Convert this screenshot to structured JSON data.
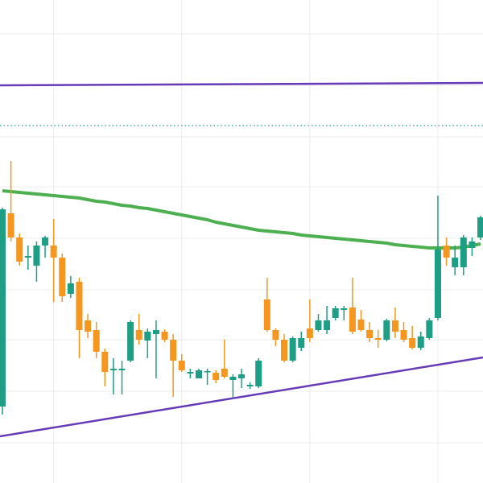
{
  "chart_data": {
    "type": "candlestick",
    "categories": [
      null,
      null,
      null,
      null,
      null,
      null,
      null,
      null,
      null,
      null,
      null,
      null,
      null,
      null,
      null,
      null,
      null,
      null,
      null,
      null,
      null,
      null,
      null,
      null,
      null,
      null,
      null,
      null,
      null,
      null,
      null,
      null,
      null,
      null,
      null,
      null,
      null,
      null,
      null,
      null,
      null,
      null,
      null,
      null,
      null,
      null,
      null,
      null,
      null,
      null,
      null,
      null,
      null,
      null,
      null,
      null,
      null
    ],
    "open": [
      95,
      335,
      305,
      280,
      270,
      295,
      295,
      280,
      235,
      250,
      202,
      190,
      163,
      140,
      140,
      152,
      190,
      177,
      185,
      188,
      178,
      152,
      136,
      130,
      138,
      137,
      142,
      128,
      130,
      120,
      120,
      228,
      190,
      178,
      152,
      168,
      192,
      190,
      190,
      205,
      215,
      218,
      203,
      190,
      180,
      178,
      202,
      190,
      180,
      168,
      180,
      205,
      295,
      268,
      268,
      292,
      305
    ],
    "high": [
      342,
      400,
      310,
      295,
      300,
      307,
      328,
      285,
      257,
      255,
      210,
      200,
      167,
      155,
      152,
      202,
      210,
      192,
      202,
      191,
      185,
      160,
      142,
      142,
      142,
      140,
      178,
      135,
      142,
      125,
      155,
      255,
      192,
      185,
      182,
      188,
      228,
      210,
      220,
      220,
      220,
      255,
      215,
      200,
      190,
      204,
      218,
      200,
      195,
      188,
      205,
      357,
      305,
      295,
      308,
      305,
      332
    ],
    "low": [
      85,
      300,
      270,
      265,
      250,
      280,
      225,
      225,
      230,
      155,
      180,
      155,
      120,
      110,
      110,
      150,
      172,
      155,
      130,
      175,
      107,
      138,
      130,
      130,
      122,
      124,
      130,
      105,
      118,
      117,
      118,
      188,
      170,
      150,
      150,
      164,
      175,
      188,
      185,
      202,
      202,
      185,
      188,
      175,
      168,
      176,
      180,
      175,
      166,
      165,
      178,
      202,
      270,
      258,
      258,
      282,
      302
    ],
    "close": [
      340,
      305,
      275,
      282,
      295,
      305,
      280,
      232,
      248,
      190,
      188,
      163,
      138,
      142,
      142,
      200,
      178,
      188,
      190,
      178,
      152,
      140,
      138,
      140,
      139,
      128,
      132,
      132,
      135,
      122,
      152,
      190,
      178,
      152,
      180,
      180,
      180,
      202,
      202,
      217,
      217,
      188,
      190,
      180,
      178,
      202,
      188,
      178,
      168,
      182,
      202,
      290,
      280,
      280,
      305,
      300,
      330
    ],
    "up_color": "#1e9e84",
    "down_color": "#f5961e",
    "series": [
      {
        "color": "#4caf50",
        "values": [
          363,
          362,
          361,
          360,
          359,
          358,
          357,
          356,
          355,
          354,
          352,
          350,
          349,
          347,
          345,
          344,
          342,
          341,
          339,
          337,
          335,
          333,
          331,
          329,
          327,
          324,
          322,
          320,
          318,
          316,
          314,
          313,
          312,
          311,
          310,
          308,
          307,
          306,
          305,
          304,
          303,
          302,
          301,
          300,
          299,
          298,
          296,
          295,
          294,
          293,
          292,
          292,
          292,
          292,
          293,
          295,
          297
        ]
      }
    ],
    "trendlines": [
      {
        "x": [
          0,
          56
        ],
        "values": [
          494,
          497
        ],
        "color": "#673ab7",
        "style": "solid"
      },
      {
        "x": [
          0,
          56
        ],
        "values": [
          58,
          156
        ],
        "color": "#673ab7",
        "style": "solid"
      },
      {
        "x": [
          0,
          56
        ],
        "values": [
          444,
          444
        ],
        "color": "#1e9e84",
        "style": "dotted"
      }
    ],
    "ylim": [
      0,
      600
    ],
    "yticks": [
      50,
      114,
      178,
      240,
      304,
      368,
      430,
      494,
      558
    ],
    "xticks": [
      6,
      21,
      36,
      51
    ],
    "grid": true
  }
}
